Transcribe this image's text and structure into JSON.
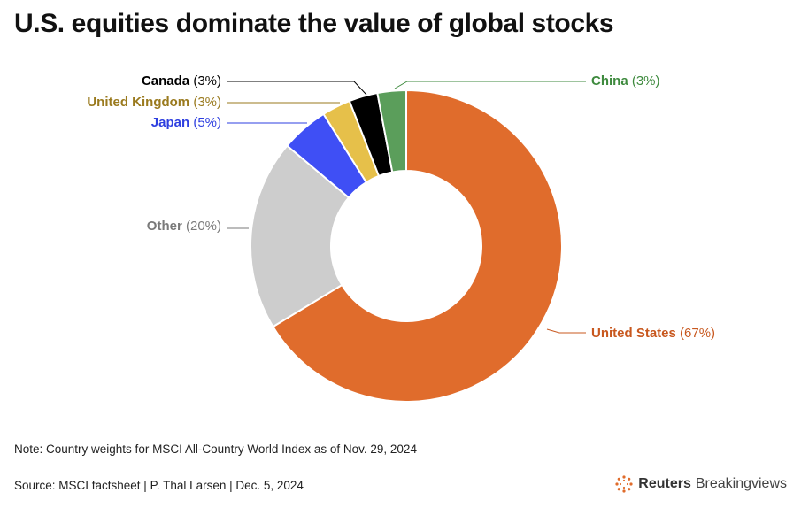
{
  "title": "U.S. equities dominate the value of global stocks",
  "note": "Note: Country weights for MSCI All-Country World Index as of Nov. 29, 2024",
  "source": "Source: MSCI factsheet | P. Thal Larsen | Dec. 5, 2024",
  "brand": {
    "part1": "Reuters",
    "part2": "Breakingviews",
    "icon": "reuters-dot-logo"
  },
  "chart_data": {
    "type": "pie",
    "donut": true,
    "title": "U.S. equities dominate the value of global stocks",
    "slices": [
      {
        "name": "United States",
        "value_label": "(67%)",
        "value": 67,
        "color": "#E06C2C"
      },
      {
        "name": "Other",
        "value_label": "(20%)",
        "value": 20,
        "color": "#CDCDCD"
      },
      {
        "name": "Japan",
        "value_label": "(5%)",
        "value": 5,
        "color": "#3F4FF5"
      },
      {
        "name": "United Kingdom",
        "value_label": "(3%)",
        "value": 3,
        "color": "#E6C04A"
      },
      {
        "name": "Canada",
        "value_label": "(3%)",
        "value": 3,
        "color": "#000000"
      },
      {
        "name": "China",
        "value_label": "(3%)",
        "value": 3,
        "color": "#5B9E5B"
      }
    ],
    "label_colors": {
      "United States": "#C8581F",
      "Other": "#7A7A7A",
      "Japan": "#2E3FE0",
      "United Kingdom": "#9A7A1E",
      "Canada": "#000000",
      "China": "#3E8A3E"
    }
  }
}
